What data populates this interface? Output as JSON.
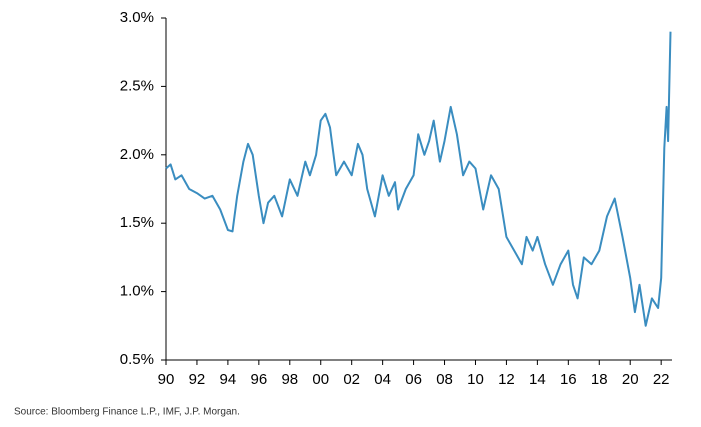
{
  "chart_data": {
    "type": "line",
    "source": "Source: Bloomberg Finance L.P., IMF, J.P. Morgan.",
    "x": [
      1990,
      1990.3,
      1990.6,
      1991,
      1991.5,
      1992,
      1992.5,
      1993,
      1993.5,
      1994,
      1994.3,
      1994.6,
      1995,
      1995.3,
      1995.6,
      1996,
      1996.3,
      1996.6,
      1997,
      1997.5,
      1998,
      1998.5,
      1999,
      1999.3,
      1999.7,
      2000,
      2000.3,
      2000.6,
      2001,
      2001.5,
      2002,
      2002.4,
      2002.7,
      2003,
      2003.5,
      2004,
      2004.4,
      2004.8,
      2005,
      2005.5,
      2006,
      2006.3,
      2006.7,
      2007,
      2007.3,
      2007.7,
      2008,
      2008.4,
      2008.8,
      2009.2,
      2009.6,
      2010,
      2010.5,
      2011,
      2011.5,
      2012,
      2012.5,
      2013,
      2013.3,
      2013.7,
      2014,
      2014.5,
      2015,
      2015.5,
      2016,
      2016.3,
      2016.6,
      2017,
      2017.5,
      2018,
      2018.5,
      2019,
      2019.5,
      2020,
      2020.3,
      2020.6,
      2021,
      2021.4,
      2021.8,
      2022,
      2022.2,
      2022.35,
      2022.45,
      2022.6
    ],
    "series": [
      {
        "color": "#3a8dc0",
        "values": [
          1.9,
          1.93,
          1.82,
          1.85,
          1.75,
          1.72,
          1.68,
          1.7,
          1.6,
          1.45,
          1.44,
          1.7,
          1.95,
          2.08,
          2.0,
          1.7,
          1.5,
          1.65,
          1.7,
          1.55,
          1.82,
          1.7,
          1.95,
          1.85,
          2.0,
          2.25,
          2.3,
          2.2,
          1.85,
          1.95,
          1.85,
          2.08,
          2.0,
          1.75,
          1.55,
          1.85,
          1.7,
          1.8,
          1.6,
          1.75,
          1.85,
          2.15,
          2.0,
          2.1,
          2.25,
          1.95,
          2.1,
          2.35,
          2.15,
          1.85,
          1.95,
          1.9,
          1.6,
          1.85,
          1.75,
          1.4,
          1.3,
          1.2,
          1.4,
          1.3,
          1.4,
          1.2,
          1.05,
          1.2,
          1.3,
          1.05,
          0.95,
          1.25,
          1.2,
          1.3,
          1.55,
          1.68,
          1.4,
          1.1,
          0.85,
          1.05,
          0.75,
          0.95,
          0.88,
          1.1,
          2.05,
          2.35,
          2.1,
          2.9
        ]
      }
    ],
    "xlim": [
      1990,
      2022.7
    ],
    "xticks": [
      {
        "value": 1990,
        "label": "90"
      },
      {
        "value": 1992,
        "label": "92"
      },
      {
        "value": 1994,
        "label": "94"
      },
      {
        "value": 1996,
        "label": "96"
      },
      {
        "value": 1998,
        "label": "98"
      },
      {
        "value": 2000,
        "label": "00"
      },
      {
        "value": 2002,
        "label": "02"
      },
      {
        "value": 2004,
        "label": "04"
      },
      {
        "value": 2006,
        "label": "06"
      },
      {
        "value": 2008,
        "label": "08"
      },
      {
        "value": 2010,
        "label": "10"
      },
      {
        "value": 2012,
        "label": "12"
      },
      {
        "value": 2014,
        "label": "14"
      },
      {
        "value": 2016,
        "label": "16"
      },
      {
        "value": 2018,
        "label": "18"
      },
      {
        "value": 2020,
        "label": "20"
      },
      {
        "value": 2022,
        "label": "22"
      }
    ],
    "ylim": [
      0.5,
      3.0
    ],
    "yticks": [
      {
        "value": 0.5,
        "label": "0.5%"
      },
      {
        "value": 1.0,
        "label": "1.0%"
      },
      {
        "value": 1.5,
        "label": "1.5%"
      },
      {
        "value": 2.0,
        "label": "2.0%"
      },
      {
        "value": 2.5,
        "label": "2.5%"
      },
      {
        "value": 3.0,
        "label": "3.0%"
      }
    ]
  }
}
